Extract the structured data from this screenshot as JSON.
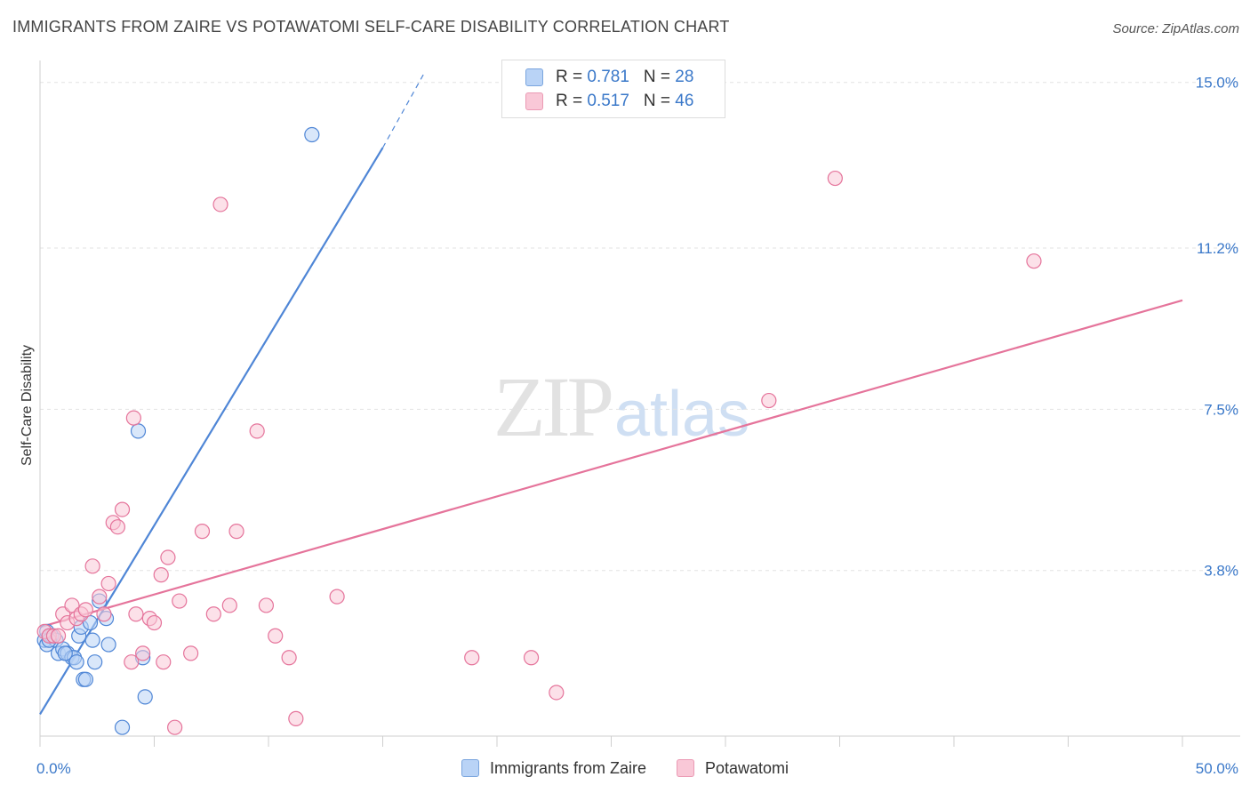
{
  "title": "IMMIGRANTS FROM ZAIRE VS POTAWATOMI SELF-CARE DISABILITY CORRELATION CHART",
  "source": "Source: ZipAtlas.com",
  "watermark": {
    "zip": "ZIP",
    "atlas": "atlas"
  },
  "legend": {
    "r_label": "R = ",
    "n_label": "N = ",
    "series": [
      {
        "name": "Immigrants from Zaire",
        "r": "0.781",
        "n": "28"
      },
      {
        "name": "Potawatomi",
        "r": "0.517",
        "n": "46"
      }
    ]
  },
  "chart_data": {
    "type": "scatter",
    "xlabel": "",
    "ylabel": "Self-Care Disability",
    "xlim": [
      0,
      50
    ],
    "ylim": [
      0,
      15.3
    ],
    "x_tick_labels": [
      "0.0%",
      "50.0%"
    ],
    "y_ticks": [
      3.8,
      7.5,
      11.2,
      15.0
    ],
    "y_tick_labels": [
      "3.8%",
      "7.5%",
      "11.2%",
      "15.0%"
    ],
    "colors": {
      "blue": "#4f86d6",
      "blue_fill": "#b9d3f6",
      "pink": "#e5749b",
      "pink_fill": "#f9c8d7",
      "grid": "#e3e3e3"
    },
    "series": [
      {
        "name": "Immigrants from Zaire",
        "color": "blue",
        "trend": {
          "x0": 0.0,
          "y0": 0.5,
          "x1": 15.0,
          "y1": 13.5,
          "dash_x1": 16.8,
          "dash_y1": 15.2
        },
        "points": [
          [
            0.2,
            2.2
          ],
          [
            0.3,
            2.1
          ],
          [
            0.5,
            2.3
          ],
          [
            0.7,
            2.2
          ],
          [
            0.8,
            1.9
          ],
          [
            1.0,
            2.0
          ],
          [
            1.2,
            1.9
          ],
          [
            1.4,
            1.8
          ],
          [
            1.5,
            1.8
          ],
          [
            1.6,
            1.7
          ],
          [
            1.7,
            2.3
          ],
          [
            1.8,
            2.5
          ],
          [
            1.9,
            1.3
          ],
          [
            2.0,
            1.3
          ],
          [
            2.2,
            2.6
          ],
          [
            2.3,
            2.2
          ],
          [
            2.4,
            1.7
          ],
          [
            2.6,
            3.1
          ],
          [
            2.9,
            2.7
          ],
          [
            3.0,
            2.1
          ],
          [
            1.1,
            1.9
          ],
          [
            4.3,
            7.0
          ],
          [
            11.9,
            13.8
          ],
          [
            3.6,
            0.2
          ],
          [
            4.6,
            0.9
          ],
          [
            4.5,
            1.8
          ],
          [
            0.3,
            2.4
          ],
          [
            0.4,
            2.2
          ]
        ]
      },
      {
        "name": "Potawatomi",
        "color": "pink",
        "trend": {
          "x0": 0.0,
          "y0": 2.5,
          "x1": 50.0,
          "y1": 10.0
        },
        "points": [
          [
            0.2,
            2.4
          ],
          [
            0.4,
            2.3
          ],
          [
            0.6,
            2.3
          ],
          [
            0.8,
            2.3
          ],
          [
            1.0,
            2.8
          ],
          [
            1.2,
            2.6
          ],
          [
            1.4,
            3.0
          ],
          [
            1.6,
            2.7
          ],
          [
            1.8,
            2.8
          ],
          [
            2.0,
            2.9
          ],
          [
            2.3,
            3.9
          ],
          [
            2.6,
            3.2
          ],
          [
            2.8,
            2.8
          ],
          [
            3.0,
            3.5
          ],
          [
            3.2,
            4.9
          ],
          [
            3.4,
            4.8
          ],
          [
            3.6,
            5.2
          ],
          [
            4.0,
            1.7
          ],
          [
            4.1,
            7.3
          ],
          [
            4.2,
            2.8
          ],
          [
            4.5,
            1.9
          ],
          [
            4.8,
            2.7
          ],
          [
            5.0,
            2.6
          ],
          [
            5.3,
            3.7
          ],
          [
            5.4,
            1.7
          ],
          [
            5.6,
            4.1
          ],
          [
            5.9,
            0.2
          ],
          [
            6.1,
            3.1
          ],
          [
            6.6,
            1.9
          ],
          [
            7.1,
            4.7
          ],
          [
            7.6,
            2.8
          ],
          [
            7.9,
            12.2
          ],
          [
            8.3,
            3.0
          ],
          [
            8.6,
            4.7
          ],
          [
            9.5,
            7.0
          ],
          [
            9.9,
            3.0
          ],
          [
            10.3,
            2.3
          ],
          [
            10.9,
            1.8
          ],
          [
            11.2,
            0.4
          ],
          [
            13.0,
            3.2
          ],
          [
            18.9,
            1.8
          ],
          [
            21.5,
            1.8
          ],
          [
            22.6,
            1.0
          ],
          [
            31.9,
            7.7
          ],
          [
            34.8,
            12.8
          ],
          [
            43.5,
            10.9
          ]
        ]
      }
    ]
  }
}
